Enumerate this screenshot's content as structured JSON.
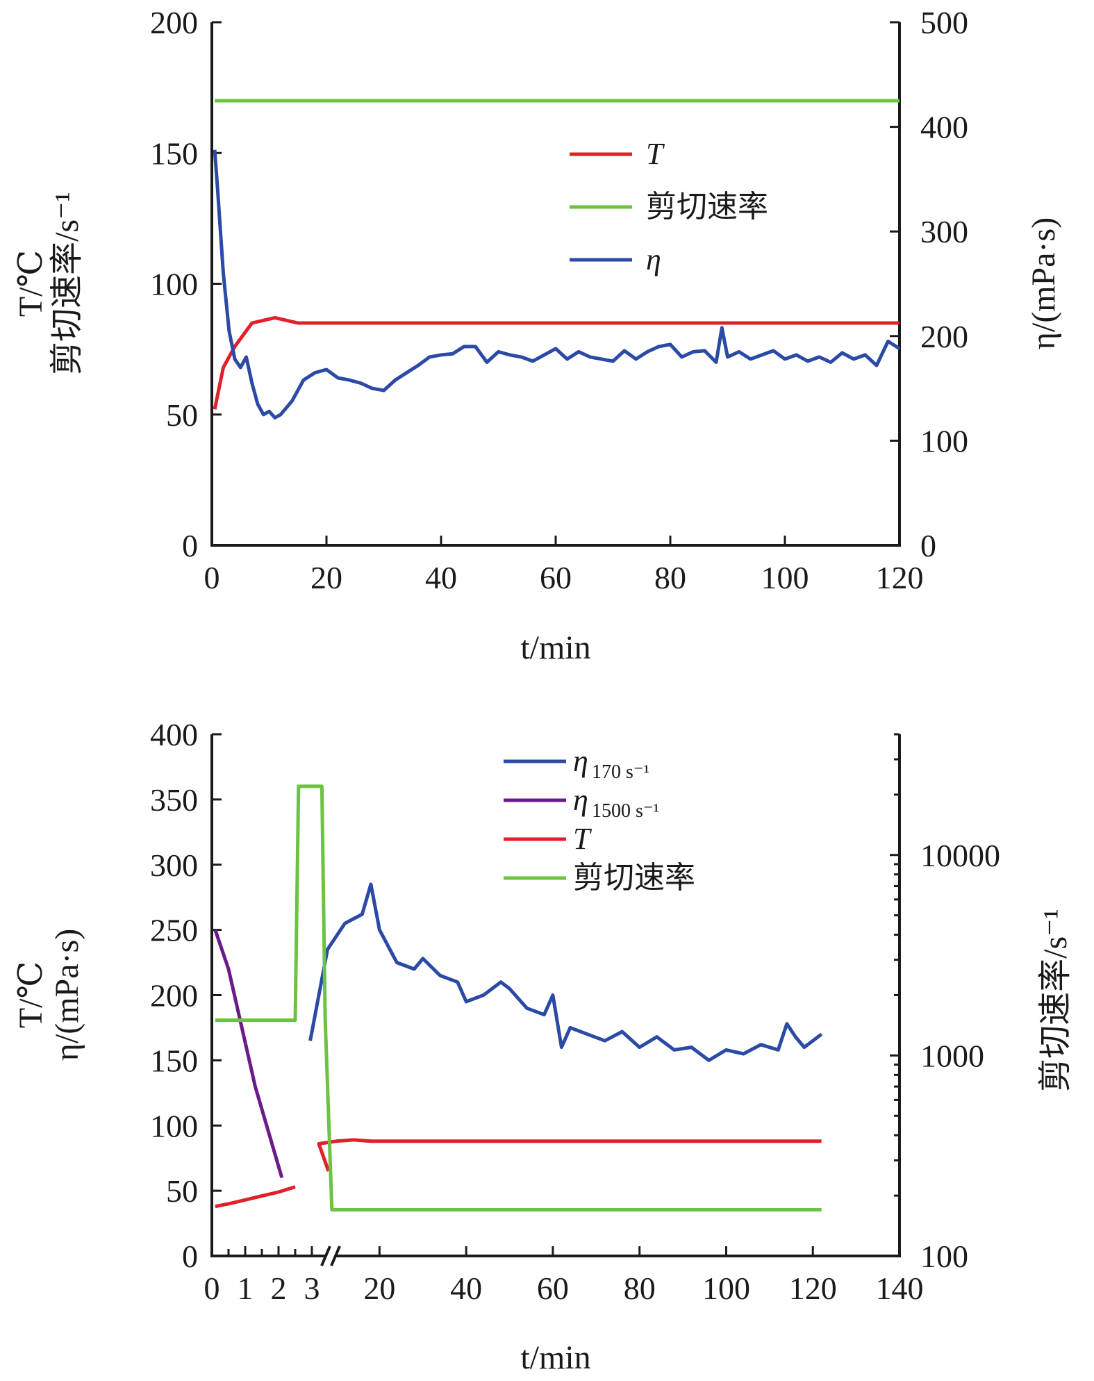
{
  "chart_data": [
    {
      "type": "line",
      "x_label": "t/min",
      "y_left_label_lines": [
        "T/℃",
        "剪切速率/s⁻¹"
      ],
      "y_right_label": "η/(mPa·s)",
      "xlim": [
        0,
        120
      ],
      "ylim_left": [
        0,
        200
      ],
      "ylim_right": [
        0,
        500
      ],
      "x_ticks": [
        "0",
        "20",
        "40",
        "60",
        "80",
        "100",
        "120"
      ],
      "y_left_ticks": [
        "0",
        "50",
        "100",
        "150",
        "200"
      ],
      "y_right_ticks": [
        "0",
        "100",
        "200",
        "300",
        "400",
        "500"
      ],
      "legend_position": "upper-middle",
      "legend": [
        {
          "key": "T",
          "label": "T",
          "color": "#e0202a"
        },
        {
          "key": "shear",
          "label": "剪切速率",
          "color": "#6cc241"
        },
        {
          "key": "eta",
          "label": "η",
          "color": "#2b4aa6"
        }
      ],
      "series": [
        {
          "key": "T",
          "name": "T",
          "axis": "left",
          "color": "#e0202a",
          "x": [
            0.5,
            2,
            4,
            7,
            9,
            11,
            13,
            15,
            20,
            40,
            60,
            80,
            100,
            120
          ],
          "y": [
            52,
            68,
            76,
            85,
            86,
            87,
            86,
            85,
            85,
            85,
            85,
            85,
            85,
            85
          ]
        },
        {
          "key": "shear",
          "name": "剪切速率",
          "axis": "left",
          "color": "#6cc241",
          "x": [
            0.5,
            10,
            20,
            30,
            40,
            50,
            60,
            70,
            80,
            90,
            100,
            110,
            120
          ],
          "y": [
            170,
            170,
            170,
            170,
            170,
            170,
            170,
            170,
            170,
            170,
            170,
            170,
            170
          ]
        },
        {
          "key": "eta",
          "name": "η",
          "axis": "right",
          "color": "#2b4aa6",
          "x": [
            0.5,
            1,
            2,
            3,
            4,
            5,
            6,
            7,
            8,
            9,
            10,
            11,
            12,
            14,
            16,
            18,
            20,
            22,
            24,
            26,
            28,
            30,
            32,
            34,
            36,
            38,
            40,
            42,
            44,
            46,
            48,
            50,
            52,
            54,
            56,
            58,
            60,
            62,
            64,
            66,
            68,
            70,
            72,
            74,
            76,
            78,
            80,
            82,
            84,
            86,
            88,
            89,
            90,
            92,
            94,
            96,
            98,
            100,
            102,
            104,
            106,
            108,
            110,
            112,
            114,
            116,
            118,
            120
          ],
          "y": [
            378,
            340,
            260,
            205,
            178,
            170,
            180,
            155,
            135,
            125,
            128,
            122,
            125,
            138,
            158,
            165,
            168,
            160,
            158,
            155,
            150,
            148,
            158,
            165,
            172,
            180,
            182,
            183,
            190,
            190,
            175,
            185,
            182,
            180,
            176,
            182,
            188,
            178,
            185,
            180,
            178,
            176,
            186,
            178,
            185,
            190,
            192,
            180,
            185,
            186,
            175,
            208,
            180,
            185,
            178,
            182,
            186,
            178,
            182,
            176,
            180,
            175,
            184,
            178,
            182,
            172,
            195,
            188
          ]
        }
      ]
    },
    {
      "type": "line",
      "x_label": "t/min",
      "y_left_label_lines": [
        "T/℃",
        "η/(mPa·s)"
      ],
      "y_right_label": "剪切速率/s⁻¹",
      "ylim_left": [
        0,
        400
      ],
      "right_axis_scale": "log",
      "ylim_right": [
        100,
        40000
      ],
      "x_axis_break": "between 3 and 20",
      "x_ticks": [
        "0",
        "1",
        "2",
        "3",
        "20",
        "40",
        "60",
        "80",
        "100",
        "120",
        "140"
      ],
      "y_left_ticks": [
        "0",
        "50",
        "100",
        "150",
        "200",
        "250",
        "300",
        "350",
        "400"
      ],
      "y_right_ticks": [
        "100",
        "1000",
        "10000"
      ],
      "legend_position": "top-middle",
      "legend": [
        {
          "key": "eta170",
          "label": "η",
          "sub": "170 s⁻¹",
          "color": "#2b4aa6"
        },
        {
          "key": "eta1500",
          "label": "η",
          "sub": "1500 s⁻¹",
          "color": "#6a1b8a"
        },
        {
          "key": "T",
          "label": "T",
          "sub": "",
          "color": "#e0202a"
        },
        {
          "key": "shear",
          "label": "剪切速率",
          "sub": "",
          "color": "#6cc241"
        }
      ],
      "series": [
        {
          "key": "eta170",
          "name": "η 170 s⁻¹",
          "axis": "left",
          "color": "#2b4aa6",
          "x": [
            4,
            8,
            12,
            16,
            18,
            20,
            24,
            28,
            30,
            34,
            38,
            40,
            44,
            48,
            50,
            54,
            58,
            60,
            62,
            64,
            68,
            72,
            76,
            80,
            84,
            88,
            92,
            96,
            100,
            104,
            108,
            112,
            114,
            116,
            118,
            122
          ],
          "y": [
            165,
            235,
            255,
            262,
            285,
            250,
            225,
            220,
            228,
            215,
            210,
            195,
            200,
            210,
            205,
            190,
            185,
            200,
            160,
            175,
            170,
            165,
            172,
            160,
            168,
            158,
            160,
            150,
            158,
            155,
            162,
            158,
            178,
            168,
            160,
            170
          ]
        },
        {
          "key": "eta1500",
          "name": "η 1500 s⁻¹",
          "axis": "left",
          "color": "#6a1b8a",
          "x": [
            0.1,
            0.5,
            0.9,
            1.3,
            1.7,
            2.1
          ],
          "y": [
            250,
            220,
            175,
            130,
            95,
            60
          ]
        },
        {
          "key": "T",
          "name": "T",
          "axis": "left",
          "color": "#e0202a",
          "x": [
            0.1,
            0.5,
            1,
            1.5,
            2,
            2.5,
            3.5,
            6,
            10,
            14,
            18,
            20,
            40,
            60,
            80,
            100,
            122
          ],
          "y": [
            38,
            40,
            43,
            46,
            49,
            53,
            65,
            86,
            88,
            89,
            88,
            88,
            88,
            88,
            88,
            88,
            88
          ]
        },
        {
          "key": "shear",
          "name": "剪切速率",
          "axis": "right",
          "color": "#6cc241",
          "x": [
            0.1,
            2.5,
            2.6,
            3.3,
            3.4,
            3.6,
            10,
            20,
            40,
            60,
            80,
            100,
            122
          ],
          "y": [
            1500,
            1500,
            22000,
            22000,
            1500,
            170,
            170,
            170,
            170,
            170,
            170,
            170,
            170
          ]
        }
      ]
    }
  ]
}
